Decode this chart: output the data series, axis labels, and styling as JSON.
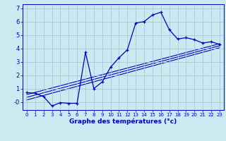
{
  "xlabel": "Graphe des températures (°c)",
  "bg_color": "#cce8f0",
  "grid_color": "#aac8dc",
  "line_color": "#0000bb",
  "xlim": [
    -0.5,
    23.5
  ],
  "ylim": [
    -0.6,
    7.3
  ],
  "xticks": [
    0,
    1,
    2,
    3,
    4,
    5,
    6,
    7,
    8,
    9,
    10,
    11,
    12,
    13,
    14,
    15,
    16,
    17,
    18,
    19,
    20,
    21,
    22,
    23
  ],
  "yticks": [
    0,
    1,
    2,
    3,
    4,
    5,
    6,
    7
  ],
  "ytick_labels": [
    "-0",
    "1",
    "2",
    "3",
    "4",
    "5",
    "6",
    "7"
  ],
  "curve1_x": [
    0,
    1,
    2,
    3,
    4,
    5,
    6,
    7,
    8,
    9,
    10,
    11,
    12,
    13,
    14,
    15,
    16,
    17,
    18,
    19,
    20,
    21,
    22,
    23
  ],
  "curve1_y": [
    0.7,
    0.65,
    0.4,
    -0.3,
    -0.05,
    -0.1,
    -0.1,
    3.7,
    1.0,
    1.5,
    2.6,
    3.3,
    3.9,
    5.9,
    6.0,
    6.5,
    6.7,
    5.4,
    4.7,
    4.8,
    4.65,
    4.4,
    4.5,
    4.3
  ],
  "curve2_x": [
    0,
    23
  ],
  "curve2_y": [
    0.55,
    4.35
  ],
  "curve3_x": [
    0,
    23
  ],
  "curve3_y": [
    0.35,
    4.2
  ],
  "curve4_x": [
    0,
    23
  ],
  "curve4_y": [
    0.15,
    4.05
  ]
}
